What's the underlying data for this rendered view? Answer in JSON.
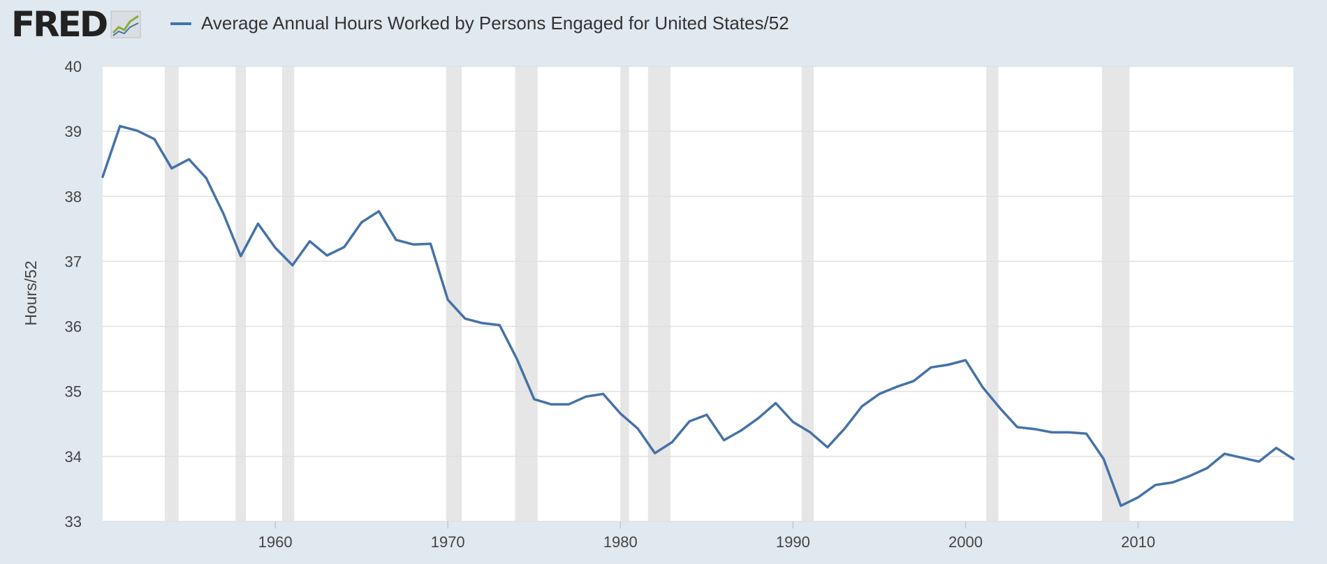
{
  "header": {
    "logo_text": "FRED",
    "legend_label": "Average Annual Hours Worked by Persons Engaged for United States/52"
  },
  "colors": {
    "series": "#4572a7",
    "recession": "#e6e6e6",
    "plot_background": "#ffffff",
    "page_background": "#e1e9f0",
    "gridline": "#e0e0e0",
    "logo_line_green": "#8cab3a",
    "logo_line_blue": "#4572a7"
  },
  "icons": {
    "logo_graph": "line-graph-icon"
  },
  "chart_data": {
    "type": "line",
    "title": "",
    "xlabel": "",
    "ylabel": "Hours/52",
    "xlim": [
      1950,
      2019
    ],
    "ylim": [
      33,
      40
    ],
    "y_ticks": [
      "33",
      "34",
      "35",
      "36",
      "37",
      "38",
      "39",
      "40"
    ],
    "x_ticks": [
      "1960",
      "1970",
      "1980",
      "1990",
      "2000",
      "2010"
    ],
    "grid": true,
    "legend_position": "top-left",
    "recessions": [
      [
        1953.6,
        1954.4
      ],
      [
        1957.7,
        1958.3
      ],
      [
        1960.4,
        1961.1
      ],
      [
        1969.9,
        1970.8
      ],
      [
        1973.9,
        1975.2
      ],
      [
        1980.0,
        1980.5
      ],
      [
        1981.6,
        1982.9
      ],
      [
        1990.5,
        1991.2
      ],
      [
        2001.2,
        2001.9
      ],
      [
        2007.9,
        2009.5
      ]
    ],
    "series": [
      {
        "name": "Average Annual Hours Worked by Persons Engaged for United States/52",
        "x": [
          1950,
          1951,
          1952,
          1953,
          1954,
          1955,
          1956,
          1957,
          1958,
          1959,
          1960,
          1961,
          1962,
          1963,
          1964,
          1965,
          1966,
          1967,
          1968,
          1969,
          1970,
          1971,
          1972,
          1973,
          1974,
          1975,
          1976,
          1977,
          1978,
          1979,
          1980,
          1981,
          1982,
          1983,
          1984,
          1985,
          1986,
          1987,
          1988,
          1989,
          1990,
          1991,
          1992,
          1993,
          1994,
          1995,
          1996,
          1997,
          1998,
          1999,
          2000,
          2001,
          2002,
          2003,
          2004,
          2005,
          2006,
          2007,
          2008,
          2009,
          2010,
          2011,
          2012,
          2013,
          2014,
          2015,
          2016,
          2017,
          2018,
          2019
        ],
        "values": [
          38.3,
          39.08,
          39.01,
          38.88,
          38.43,
          38.57,
          38.28,
          37.73,
          37.08,
          37.58,
          37.21,
          36.94,
          37.31,
          37.09,
          37.22,
          37.6,
          37.77,
          37.33,
          37.26,
          37.27,
          36.41,
          36.12,
          36.05,
          36.02,
          35.5,
          34.88,
          34.8,
          34.8,
          34.92,
          34.96,
          34.66,
          34.43,
          34.05,
          34.22,
          34.54,
          34.64,
          34.25,
          34.4,
          34.59,
          34.82,
          34.53,
          34.37,
          34.14,
          34.43,
          34.77,
          34.96,
          35.07,
          35.16,
          35.37,
          35.41,
          35.48,
          35.06,
          34.74,
          34.45,
          34.42,
          34.37,
          34.37,
          34.35,
          33.96,
          33.24,
          33.37,
          33.56,
          33.6,
          33.7,
          33.82,
          34.04,
          33.98,
          33.92,
          34.13,
          33.96
        ]
      }
    ]
  }
}
